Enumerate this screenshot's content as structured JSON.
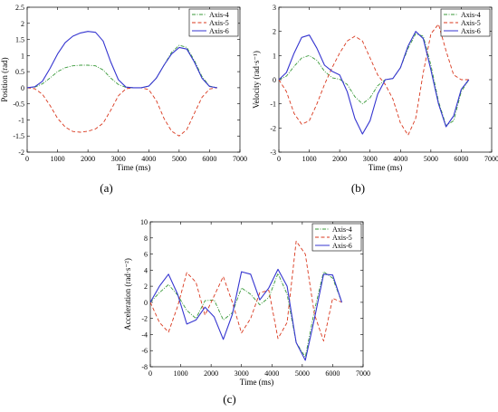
{
  "chart_data": [
    {
      "type": "line",
      "panel_label": "(a)",
      "xlabel": "Time (ms)",
      "ylabel": "Position (rad)",
      "xlim": [
        0,
        7000
      ],
      "ylim": [
        -2,
        2.5
      ],
      "xticks": [
        "0",
        "1000",
        "2000",
        "3000",
        "4000",
        "5000",
        "6000",
        "7000"
      ],
      "yticks": [
        "-2",
        "-1.5",
        "-1",
        "-0.5",
        "0",
        "0.5",
        "1",
        "1.5",
        "2",
        "2.5"
      ],
      "legend_position": "top-right",
      "series": [
        {
          "name": "Axis-4",
          "color": "#3a9a3a",
          "dash": "dashdot",
          "x": [
            0,
            250,
            500,
            750,
            1000,
            1250,
            1500,
            1750,
            2000,
            2250,
            2500,
            2750,
            3000,
            3250,
            3500,
            3750,
            4000,
            4250,
            4500,
            4750,
            5000,
            5250,
            5500,
            5750,
            6000,
            6250
          ],
          "y": [
            0,
            0.02,
            0.12,
            0.3,
            0.5,
            0.62,
            0.68,
            0.7,
            0.7,
            0.68,
            0.55,
            0.3,
            0.1,
            0.01,
            0,
            0,
            0.05,
            0.3,
            0.7,
            1.1,
            1.32,
            1.25,
            0.85,
            0.35,
            0.05,
            0
          ]
        },
        {
          "name": "Axis-5",
          "color": "#d9381e",
          "dash": "dash",
          "x": [
            0,
            250,
            500,
            750,
            1000,
            1250,
            1500,
            1750,
            2000,
            2250,
            2500,
            2750,
            3000,
            3250,
            3500,
            3750,
            4000,
            4250,
            4500,
            4750,
            5000,
            5250,
            5500,
            5750,
            6000,
            6250
          ],
          "y": [
            0,
            -0.03,
            -0.2,
            -0.55,
            -0.95,
            -1.22,
            -1.36,
            -1.38,
            -1.35,
            -1.28,
            -1.1,
            -0.7,
            -0.25,
            -0.03,
            0,
            0,
            -0.06,
            -0.4,
            -0.95,
            -1.35,
            -1.5,
            -1.3,
            -0.8,
            -0.3,
            -0.04,
            0
          ]
        },
        {
          "name": "Axis-6",
          "color": "#3535d0",
          "dash": "solid",
          "x": [
            0,
            250,
            500,
            750,
            1000,
            1250,
            1500,
            1750,
            2000,
            2250,
            2500,
            2750,
            3000,
            3250,
            3500,
            3750,
            4000,
            4250,
            4500,
            4750,
            5000,
            5250,
            5500,
            5750,
            6000,
            6250
          ],
          "y": [
            0,
            0.03,
            0.2,
            0.6,
            1.05,
            1.4,
            1.6,
            1.7,
            1.75,
            1.72,
            1.45,
            0.8,
            0.25,
            0.02,
            0,
            0,
            0.05,
            0.3,
            0.7,
            1.05,
            1.25,
            1.2,
            0.8,
            0.3,
            0.04,
            0
          ]
        }
      ]
    },
    {
      "type": "line",
      "panel_label": "(b)",
      "xlabel": "Time (ms)",
      "ylabel": "Velocity (rad·s⁻¹)",
      "xlim": [
        0,
        7000
      ],
      "ylim": [
        -3,
        3
      ],
      "xticks": [
        "0",
        "1000",
        "2000",
        "3000",
        "4000",
        "5000",
        "6000",
        "7000"
      ],
      "yticks": [
        "-3",
        "-2",
        "-1",
        "0",
        "1",
        "2",
        "3"
      ],
      "legend_position": "top-right",
      "series": [
        {
          "name": "Axis-4",
          "color": "#3a9a3a",
          "dash": "dashdot",
          "x": [
            0,
            250,
            500,
            750,
            1000,
            1250,
            1500,
            1750,
            2000,
            2250,
            2500,
            2750,
            3000,
            3250,
            3500,
            3750,
            4000,
            4250,
            4500,
            4750,
            5000,
            5250,
            5500,
            5750,
            6000,
            6250
          ],
          "y": [
            0,
            0.15,
            0.55,
            0.9,
            1.0,
            0.8,
            0.35,
            0.08,
            0.02,
            -0.2,
            -0.7,
            -1.0,
            -0.75,
            -0.25,
            0,
            0.05,
            0.5,
            1.3,
            1.9,
            1.8,
            0.6,
            -0.9,
            -1.9,
            -1.7,
            -0.5,
            0
          ]
        },
        {
          "name": "Axis-5",
          "color": "#d9381e",
          "dash": "dash",
          "x": [
            0,
            250,
            500,
            750,
            1000,
            1250,
            1500,
            1750,
            2000,
            2250,
            2500,
            2750,
            3000,
            3250,
            3500,
            3750,
            4000,
            4250,
            4500,
            4750,
            5000,
            5250,
            5500,
            5750,
            6000,
            6250
          ],
          "y": [
            0,
            -0.5,
            -1.4,
            -1.85,
            -1.7,
            -1.0,
            -0.2,
            0.5,
            1.1,
            1.6,
            1.8,
            1.6,
            0.9,
            0.2,
            -0.2,
            -0.8,
            -1.8,
            -2.3,
            -1.6,
            0.3,
            1.9,
            2.3,
            1.2,
            0.2,
            0,
            0
          ]
        },
        {
          "name": "Axis-6",
          "color": "#3535d0",
          "dash": "solid",
          "x": [
            0,
            250,
            500,
            750,
            1000,
            1250,
            1500,
            1750,
            2000,
            2250,
            2500,
            2750,
            3000,
            3250,
            3500,
            3750,
            4000,
            4250,
            4500,
            4750,
            5000,
            5250,
            5500,
            5750,
            6000,
            6250
          ],
          "y": [
            0,
            0.3,
            1.1,
            1.75,
            1.85,
            1.3,
            0.6,
            0.35,
            0.2,
            -0.5,
            -1.6,
            -2.25,
            -1.7,
            -0.6,
            0,
            0.05,
            0.5,
            1.4,
            2.0,
            1.7,
            0.4,
            -1.0,
            -1.95,
            -1.5,
            -0.4,
            0
          ]
        }
      ]
    },
    {
      "type": "line",
      "panel_label": "(c)",
      "xlabel": "Time (ms)",
      "ylabel": "Acceleration (rad·s⁻²)",
      "xlim": [
        0,
        7000
      ],
      "ylim": [
        -8,
        10
      ],
      "xticks": [
        "0",
        "1000",
        "2000",
        "3000",
        "4000",
        "5000",
        "6000",
        "7000"
      ],
      "yticks": [
        "-8",
        "-6",
        "-4",
        "-2",
        "0",
        "2",
        "4",
        "6",
        "8",
        "10"
      ],
      "legend_position": "top-right",
      "series": [
        {
          "name": "Axis-4",
          "color": "#3a9a3a",
          "dash": "dashdot",
          "x": [
            0,
            300,
            600,
            900,
            1200,
            1500,
            1800,
            2100,
            2400,
            2700,
            3000,
            3300,
            3600,
            3900,
            4200,
            4500,
            4800,
            5100,
            5400,
            5700,
            6000,
            6300
          ],
          "y": [
            0,
            1.2,
            2.2,
            0.9,
            -1.0,
            -2.0,
            0.2,
            0.3,
            -2.2,
            -1.3,
            1.8,
            1.0,
            -0.3,
            0.6,
            3.6,
            1.0,
            -5.0,
            -6.8,
            -1.0,
            3.8,
            3.0,
            0
          ]
        },
        {
          "name": "Axis-5",
          "color": "#d9381e",
          "dash": "dash",
          "x": [
            0,
            300,
            600,
            900,
            1200,
            1500,
            1800,
            2100,
            2400,
            2700,
            3000,
            3300,
            3600,
            3900,
            4200,
            4500,
            4800,
            5100,
            5400,
            5700,
            6000,
            6300
          ],
          "y": [
            0,
            -2.5,
            -3.7,
            -0.5,
            3.7,
            2.5,
            -1.6,
            0.8,
            3.2,
            0.0,
            -3.8,
            -2.0,
            1.2,
            1.5,
            -4.5,
            -2.5,
            7.6,
            6.0,
            -1.5,
            -4.8,
            0.5,
            0
          ]
        },
        {
          "name": "Axis-6",
          "color": "#3535d0",
          "dash": "solid",
          "x": [
            0,
            300,
            600,
            900,
            1200,
            1500,
            1800,
            2100,
            2400,
            2700,
            3000,
            3300,
            3600,
            3900,
            4200,
            4500,
            4800,
            5100,
            5400,
            5700,
            6000,
            6300
          ],
          "y": [
            0,
            2.0,
            3.5,
            1.0,
            -2.7,
            -2.2,
            -0.6,
            -1.8,
            -4.6,
            -1.5,
            3.8,
            3.5,
            0.3,
            1.8,
            4.1,
            2.0,
            -5.0,
            -7.2,
            -2.0,
            3.5,
            3.4,
            0
          ]
        }
      ]
    }
  ]
}
